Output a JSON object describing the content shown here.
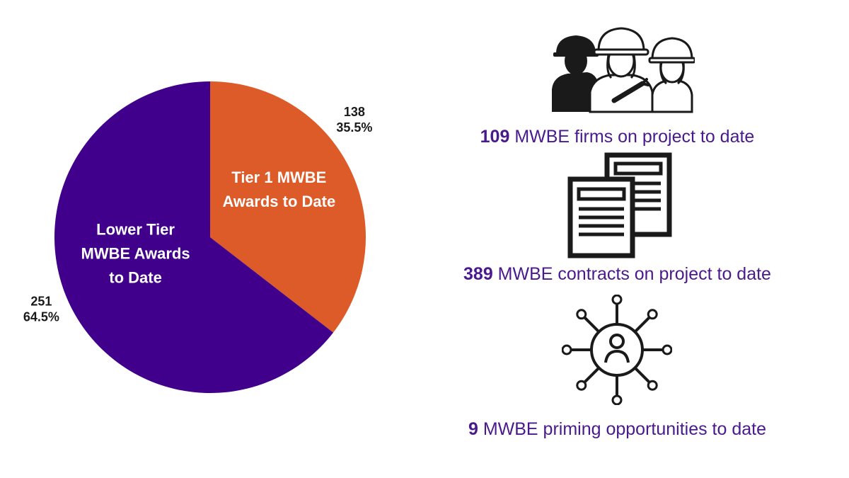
{
  "chart_data": {
    "type": "pie",
    "slices": [
      {
        "label": "Tier 1 MWBE Awards to Date",
        "value": 138,
        "percent": "35.5%",
        "color": "#dd5a29"
      },
      {
        "label": "Lower Tier MWBE Awards to Date",
        "value": 251,
        "percent": "64.5%",
        "color": "#41008c"
      }
    ],
    "slice_label_lines": [
      [
        "Tier 1 MWBE",
        "Awards to Date"
      ],
      [
        "Lower Tier",
        "MWBE Awards",
        "to Date"
      ]
    ]
  },
  "stats": [
    {
      "number": "109",
      "text": " MWBE firms on project to date",
      "icon": "construction-workers-icon"
    },
    {
      "number": "389",
      "text": " MWBE contracts on project to date",
      "icon": "documents-icon"
    },
    {
      "number": "9",
      "text": " MWBE priming opportunities to date",
      "icon": "network-person-icon"
    }
  ],
  "colors": {
    "stat_text": "#4a1a8c",
    "icon_stroke": "#1a1a1a"
  }
}
